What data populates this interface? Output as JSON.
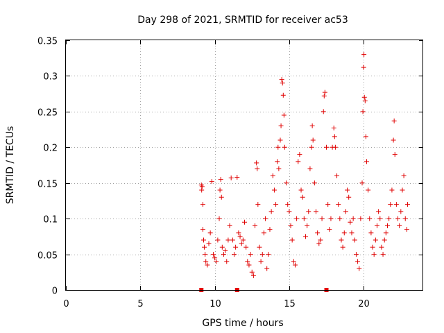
{
  "chart_data": {
    "type": "scatter",
    "title": "Day 298 of 2021, SRMTID for receiver ac53",
    "xlabel": "GPS time / hours",
    "ylabel": "SRMTID / TECUs",
    "xlim": [
      0,
      24
    ],
    "ylim": [
      0,
      0.35
    ],
    "xticks": [
      0,
      5,
      10,
      15,
      20
    ],
    "xtick_labels": [
      "0",
      "5",
      "10",
      "15",
      "20"
    ],
    "yticks": [
      0,
      0.05,
      0.1,
      0.15,
      0.2,
      0.25,
      0.3,
      0.35
    ],
    "ytick_labels": [
      "0",
      "0.05",
      "0.1",
      "0.15",
      "0.2",
      "0.25",
      "0.3",
      "0.35"
    ],
    "grid": true,
    "marker": "+",
    "color": "#e00000",
    "outage_markers_x": [
      9.1,
      11.5,
      17.5
    ],
    "series": [
      {
        "name": "SRMTID",
        "points": [
          [
            9.1,
            0.147
          ],
          [
            9.12,
            0.14
          ],
          [
            9.15,
            0.145
          ],
          [
            9.2,
            0.12
          ],
          [
            9.2,
            0.085
          ],
          [
            9.25,
            0.07
          ],
          [
            9.3,
            0.06
          ],
          [
            9.35,
            0.05
          ],
          [
            9.4,
            0.04
          ],
          [
            9.5,
            0.035
          ],
          [
            9.6,
            0.065
          ],
          [
            9.7,
            0.08
          ],
          [
            9.8,
            0.152
          ],
          [
            9.9,
            0.05
          ],
          [
            10.0,
            0.045
          ],
          [
            10.1,
            0.04
          ],
          [
            10.2,
            0.07
          ],
          [
            10.3,
            0.1
          ],
          [
            10.35,
            0.14
          ],
          [
            10.4,
            0.155
          ],
          [
            10.45,
            0.13
          ],
          [
            10.5,
            0.06
          ],
          [
            10.6,
            0.05
          ],
          [
            10.7,
            0.055
          ],
          [
            10.8,
            0.04
          ],
          [
            10.9,
            0.07
          ],
          [
            11.0,
            0.09
          ],
          [
            11.1,
            0.157
          ],
          [
            11.2,
            0.07
          ],
          [
            11.3,
            0.05
          ],
          [
            11.4,
            0.06
          ],
          [
            11.5,
            0.158
          ],
          [
            11.6,
            0.08
          ],
          [
            11.7,
            0.075
          ],
          [
            11.8,
            0.065
          ],
          [
            11.9,
            0.07
          ],
          [
            12.0,
            0.095
          ],
          [
            12.1,
            0.06
          ],
          [
            12.2,
            0.04
          ],
          [
            12.3,
            0.035
          ],
          [
            12.4,
            0.05
          ],
          [
            12.5,
            0.025
          ],
          [
            12.6,
            0.02
          ],
          [
            12.7,
            0.09
          ],
          [
            12.8,
            0.178
          ],
          [
            12.85,
            0.17
          ],
          [
            12.9,
            0.12
          ],
          [
            13.0,
            0.06
          ],
          [
            13.1,
            0.04
          ],
          [
            13.2,
            0.05
          ],
          [
            13.3,
            0.08
          ],
          [
            13.4,
            0.1
          ],
          [
            13.5,
            0.03
          ],
          [
            13.6,
            0.05
          ],
          [
            13.7,
            0.085
          ],
          [
            13.8,
            0.11
          ],
          [
            13.9,
            0.16
          ],
          [
            14.0,
            0.14
          ],
          [
            14.1,
            0.12
          ],
          [
            14.2,
            0.18
          ],
          [
            14.25,
            0.2
          ],
          [
            14.3,
            0.17
          ],
          [
            14.4,
            0.21
          ],
          [
            14.45,
            0.23
          ],
          [
            14.5,
            0.295
          ],
          [
            14.55,
            0.29
          ],
          [
            14.6,
            0.273
          ],
          [
            14.65,
            0.245
          ],
          [
            14.7,
            0.2
          ],
          [
            14.8,
            0.15
          ],
          [
            14.9,
            0.12
          ],
          [
            15.0,
            0.11
          ],
          [
            15.1,
            0.09
          ],
          [
            15.2,
            0.07
          ],
          [
            15.3,
            0.04
          ],
          [
            15.4,
            0.035
          ],
          [
            15.5,
            0.1
          ],
          [
            15.6,
            0.18
          ],
          [
            15.7,
            0.19
          ],
          [
            15.8,
            0.14
          ],
          [
            15.9,
            0.13
          ],
          [
            16.0,
            0.1
          ],
          [
            16.1,
            0.075
          ],
          [
            16.2,
            0.09
          ],
          [
            16.3,
            0.11
          ],
          [
            16.4,
            0.17
          ],
          [
            16.5,
            0.2
          ],
          [
            16.55,
            0.23
          ],
          [
            16.6,
            0.21
          ],
          [
            16.7,
            0.15
          ],
          [
            16.8,
            0.11
          ],
          [
            16.9,
            0.08
          ],
          [
            17.0,
            0.065
          ],
          [
            17.1,
            0.07
          ],
          [
            17.2,
            0.1
          ],
          [
            17.3,
            0.25
          ],
          [
            17.35,
            0.272
          ],
          [
            17.4,
            0.277
          ],
          [
            17.5,
            0.2
          ],
          [
            17.6,
            0.12
          ],
          [
            17.7,
            0.085
          ],
          [
            17.8,
            0.1
          ],
          [
            17.9,
            0.2
          ],
          [
            18.0,
            0.227
          ],
          [
            18.05,
            0.215
          ],
          [
            18.1,
            0.2
          ],
          [
            18.2,
            0.16
          ],
          [
            18.3,
            0.12
          ],
          [
            18.4,
            0.1
          ],
          [
            18.5,
            0.07
          ],
          [
            18.6,
            0.06
          ],
          [
            18.7,
            0.08
          ],
          [
            18.8,
            0.11
          ],
          [
            18.9,
            0.14
          ],
          [
            19.0,
            0.13
          ],
          [
            19.1,
            0.095
          ],
          [
            19.2,
            0.08
          ],
          [
            19.3,
            0.1
          ],
          [
            19.4,
            0.07
          ],
          [
            19.5,
            0.05
          ],
          [
            19.6,
            0.04
          ],
          [
            19.7,
            0.03
          ],
          [
            19.8,
            0.1
          ],
          [
            19.9,
            0.15
          ],
          [
            19.95,
            0.25
          ],
          [
            20.0,
            0.312
          ],
          [
            20.02,
            0.33
          ],
          [
            20.05,
            0.27
          ],
          [
            20.1,
            0.265
          ],
          [
            20.15,
            0.215
          ],
          [
            20.2,
            0.18
          ],
          [
            20.3,
            0.14
          ],
          [
            20.4,
            0.1
          ],
          [
            20.5,
            0.08
          ],
          [
            20.6,
            0.06
          ],
          [
            20.7,
            0.05
          ],
          [
            20.8,
            0.07
          ],
          [
            20.9,
            0.09
          ],
          [
            21.0,
            0.11
          ],
          [
            21.1,
            0.1
          ],
          [
            21.2,
            0.06
          ],
          [
            21.3,
            0.05
          ],
          [
            21.4,
            0.07
          ],
          [
            21.5,
            0.08
          ],
          [
            21.6,
            0.09
          ],
          [
            21.7,
            0.1
          ],
          [
            21.8,
            0.12
          ],
          [
            21.9,
            0.14
          ],
          [
            22.0,
            0.21
          ],
          [
            22.05,
            0.237
          ],
          [
            22.1,
            0.19
          ],
          [
            22.2,
            0.12
          ],
          [
            22.3,
            0.1
          ],
          [
            22.4,
            0.09
          ],
          [
            22.5,
            0.11
          ],
          [
            22.6,
            0.14
          ],
          [
            22.7,
            0.16
          ],
          [
            22.8,
            0.1
          ],
          [
            22.9,
            0.085
          ],
          [
            22.95,
            0.12
          ]
        ]
      }
    ]
  }
}
